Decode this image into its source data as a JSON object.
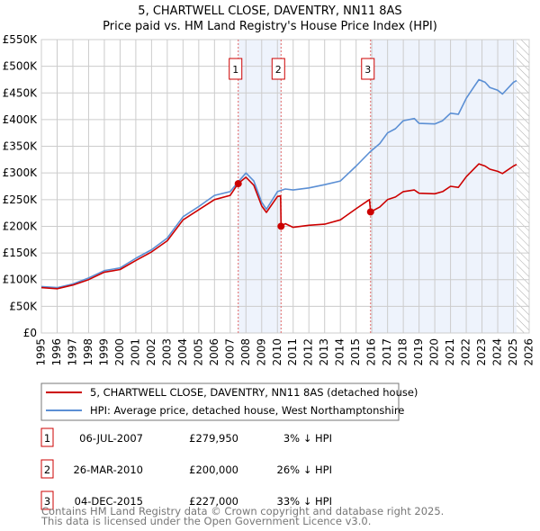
{
  "chart_data": {
    "type": "line",
    "title": "5, CHARTWELL CLOSE, DAVENTRY, NN11 8AS",
    "subtitle": "Price paid vs. HM Land Registry's House Price Index (HPI)",
    "xlabel": "",
    "ylabel": "",
    "xlim": [
      1995,
      2026
    ],
    "ylim": [
      0,
      550000
    ],
    "grid": true,
    "x_ticks": [
      "1995",
      "1996",
      "1997",
      "1998",
      "1999",
      "2000",
      "2001",
      "2002",
      "2003",
      "2004",
      "2005",
      "2006",
      "2007",
      "2008",
      "2009",
      "2010",
      "2011",
      "2012",
      "2013",
      "2014",
      "2015",
      "2016",
      "2017",
      "2018",
      "2019",
      "2020",
      "2021",
      "2022",
      "2023",
      "2024",
      "2025",
      "2026"
    ],
    "y_ticks": [
      {
        "value": 0,
        "label": "£0"
      },
      {
        "value": 50000,
        "label": "£50K"
      },
      {
        "value": 100000,
        "label": "£100K"
      },
      {
        "value": 150000,
        "label": "£150K"
      },
      {
        "value": 200000,
        "label": "£200K"
      },
      {
        "value": 250000,
        "label": "£250K"
      },
      {
        "value": 300000,
        "label": "£300K"
      },
      {
        "value": 350000,
        "label": "£350K"
      },
      {
        "value": 400000,
        "label": "£400K"
      },
      {
        "value": 450000,
        "label": "£450K"
      },
      {
        "value": 500000,
        "label": "£500K"
      },
      {
        "value": 550000,
        "label": "£550K"
      }
    ],
    "series": [
      {
        "name": "5, CHARTWELL CLOSE, DAVENTRY, NN11 8AS (detached house)",
        "color": "#cc0000",
        "x": [
          1995,
          1996,
          1997,
          1998,
          1999,
          2000,
          2001,
          2002,
          2003,
          2004,
          2005,
          2006,
          2007,
          2007.5,
          2008,
          2008.5,
          2009,
          2009.3,
          2010,
          2010.2,
          2010.23,
          2010.5,
          2011,
          2012,
          2013,
          2014,
          2015,
          2015.85,
          2015.92,
          2016.5,
          2017,
          2017.5,
          2018,
          2018.7,
          2019,
          2020,
          2020.5,
          2021,
          2021.5,
          2022,
          2022.5,
          2022.8,
          2023.2,
          2023.5,
          2024,
          2024.3,
          2025,
          2025.2
        ],
        "values": [
          85000,
          83000,
          90000,
          100000,
          114000,
          119000,
          136000,
          152000,
          173000,
          212000,
          231000,
          250000,
          258000,
          280000,
          292000,
          277000,
          238000,
          226000,
          256000,
          257000,
          200000,
          205000,
          198000,
          202000,
          204000,
          212000,
          233000,
          250000,
          227000,
          236000,
          250000,
          255000,
          265000,
          268000,
          262000,
          261000,
          265000,
          275000,
          273000,
          293000,
          308000,
          317000,
          313000,
          307000,
          303000,
          299000,
          313000,
          316000
        ]
      },
      {
        "name": "HPI: Average price, detached house, West Northamptonshire",
        "color": "#5b8fd4",
        "x": [
          1995,
          1996,
          1997,
          1998,
          1999,
          2000,
          2001,
          2002,
          2003,
          2004,
          2005,
          2006,
          2007,
          2007.5,
          2008,
          2008.5,
          2009,
          2009.3,
          2010,
          2010.5,
          2011,
          2012,
          2013,
          2014,
          2015,
          2015.9,
          2016.5,
          2017,
          2017.5,
          2018,
          2018.7,
          2019,
          2020,
          2020.5,
          2021,
          2021.5,
          2022,
          2022.5,
          2022.8,
          2023.2,
          2023.5,
          2024,
          2024.3,
          2025,
          2025.2
        ],
        "values": [
          87000,
          85000,
          92000,
          103000,
          117000,
          122000,
          140000,
          156000,
          178000,
          218000,
          237000,
          258000,
          265000,
          283000,
          300000,
          285000,
          245000,
          232000,
          265000,
          270000,
          268000,
          272000,
          278000,
          285000,
          313000,
          340000,
          355000,
          375000,
          383000,
          398000,
          402000,
          393000,
          392000,
          398000,
          412000,
          410000,
          440000,
          462000,
          475000,
          470000,
          460000,
          455000,
          448000,
          470000,
          473000
        ]
      }
    ],
    "sales": [
      {
        "label": "1",
        "x": 2007.51,
        "value": 279950
      },
      {
        "label": "2",
        "x": 2010.23,
        "value": 200000
      },
      {
        "label": "3",
        "x": 2015.92,
        "value": 227000
      }
    ],
    "shaded_ranges": [
      [
        2007.51,
        2010.23
      ],
      [
        2015.92,
        2025.2
      ]
    ],
    "hatched_range": [
      2025.2,
      2026
    ],
    "legend_position": "below"
  },
  "legend": {
    "property": "5, CHARTWELL CLOSE, DAVENTRY, NN11 8AS (detached house)",
    "hpi": "HPI: Average price, detached house, West Northamptonshire"
  },
  "table": [
    {
      "num": "1",
      "date": "06-JUL-2007",
      "price": "£279,950",
      "delta": "3% ↓ HPI"
    },
    {
      "num": "2",
      "date": "26-MAR-2010",
      "price": "£200,000",
      "delta": "26% ↓ HPI"
    },
    {
      "num": "3",
      "date": "04-DEC-2015",
      "price": "£227,000",
      "delta": "33% ↓ HPI"
    }
  ],
  "footer": {
    "line1": "Contains HM Land Registry data © Crown copyright and database right 2025.",
    "line2": "This data is licensed under the Open Government Licence v3.0."
  }
}
